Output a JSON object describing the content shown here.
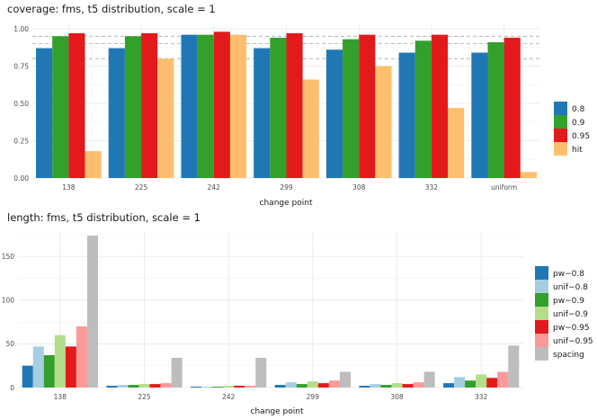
{
  "colors": {
    "blue": "#1f78b4",
    "lightblue": "#a6cee3",
    "green": "#33a02c",
    "lightgreen": "#b2df8a",
    "red": "#e31a1c",
    "pink": "#fb9a99",
    "orange": "#fdbf6f",
    "grey": "#bdbdbd"
  },
  "chart_data": [
    {
      "type": "bar",
      "title": "coverage: fms, t5 distribution, scale = 1",
      "xlabel": "change point",
      "ylabel": "",
      "categories": [
        "138",
        "225",
        "242",
        "299",
        "308",
        "332",
        "uniform"
      ],
      "ylim": [
        0,
        1.0
      ],
      "yticks": [
        0.0,
        0.25,
        0.5,
        0.75,
        1.0
      ],
      "ytick_labels": [
        "0.00",
        "0.25",
        "0.50",
        "0.75",
        "1.00"
      ],
      "reference_lines": [
        0.8,
        0.9,
        0.95
      ],
      "series": [
        {
          "name": "0.8",
          "color": "#1f78b4",
          "values": [
            0.87,
            0.87,
            0.96,
            0.87,
            0.86,
            0.84,
            0.84
          ]
        },
        {
          "name": "0.9",
          "color": "#33a02c",
          "values": [
            0.95,
            0.95,
            0.96,
            0.94,
            0.93,
            0.92,
            0.91
          ]
        },
        {
          "name": "0.95",
          "color": "#e31a1c",
          "values": [
            0.97,
            0.97,
            0.98,
            0.97,
            0.96,
            0.96,
            0.94
          ]
        },
        {
          "name": "hit",
          "color": "#fdbf6f",
          "values": [
            0.18,
            0.8,
            0.96,
            0.66,
            0.75,
            0.47,
            0.04
          ]
        }
      ]
    },
    {
      "type": "bar",
      "title": "length: fms, t5 distribution, scale = 1",
      "xlabel": "change point",
      "ylabel": "",
      "categories": [
        "138",
        "225",
        "242",
        "299",
        "308",
        "332"
      ],
      "ylim": [
        0,
        175
      ],
      "yticks": [
        0,
        50,
        100,
        150
      ],
      "ytick_labels": [
        "0",
        "50",
        "100",
        "150"
      ],
      "series": [
        {
          "name": "pw−0.8",
          "color": "#1f78b4",
          "values": [
            25,
            2,
            1,
            3,
            2,
            5
          ]
        },
        {
          "name": "unif−0.8",
          "color": "#a6cee3",
          "values": [
            47,
            3,
            1,
            6,
            4,
            12
          ]
        },
        {
          "name": "pw−0.9",
          "color": "#33a02c",
          "values": [
            37,
            3,
            1,
            4,
            3,
            8
          ]
        },
        {
          "name": "unif−0.9",
          "color": "#b2df8a",
          "values": [
            60,
            4,
            2,
            7,
            5,
            15
          ]
        },
        {
          "name": "pw−0.95",
          "color": "#e31a1c",
          "values": [
            47,
            4,
            2,
            5,
            4,
            11
          ]
        },
        {
          "name": "unif−0.95",
          "color": "#fb9a99",
          "values": [
            70,
            5,
            2,
            8,
            6,
            18
          ]
        },
        {
          "name": "spacing",
          "color": "#bdbdbd",
          "values": [
            174,
            34,
            34,
            18,
            18,
            48
          ]
        }
      ]
    }
  ]
}
